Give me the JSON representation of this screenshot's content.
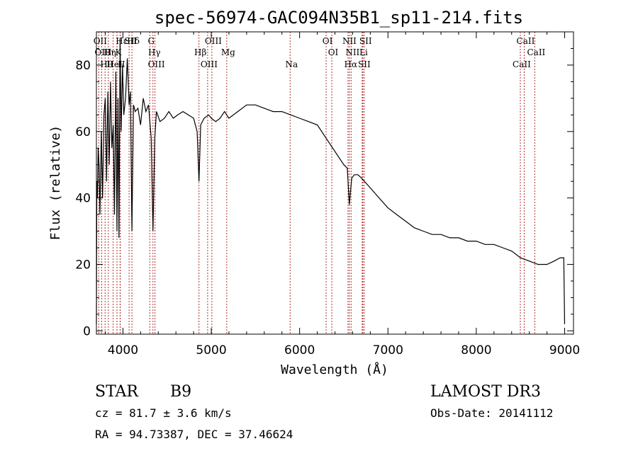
{
  "chart_data": {
    "type": "line",
    "title": "spec-56974-GAC094N35B1_sp11-214.fits",
    "xlabel": "Wavelength (Å)",
    "ylabel": "Flux (relative)",
    "xlim": [
      3700,
      9100
    ],
    "ylim": [
      -1,
      90
    ],
    "x_ticks": [
      4000,
      5000,
      6000,
      7000,
      8000,
      9000
    ],
    "y_ticks": [
      0,
      20,
      40,
      60,
      80
    ],
    "grid": false,
    "series": [
      {
        "name": "flux",
        "x": [
          3700,
          3705,
          3712,
          3720,
          3730,
          3740,
          3755,
          3770,
          3785,
          3800,
          3815,
          3830,
          3845,
          3860,
          3875,
          3890,
          3905,
          3920,
          3933,
          3945,
          3955,
          3968,
          3980,
          3995,
          4010,
          4030,
          4050,
          4070,
          4085,
          4102,
          4120,
          4140,
          4170,
          4200,
          4230,
          4260,
          4290,
          4320,
          4340,
          4360,
          4380,
          4420,
          4470,
          4520,
          4570,
          4620,
          4680,
          4740,
          4800,
          4840,
          4861,
          4880,
          4920,
          4970,
          5000,
          5050,
          5100,
          5150,
          5200,
          5300,
          5400,
          5500,
          5600,
          5700,
          5800,
          5900,
          6000,
          6100,
          6200,
          6300,
          6400,
          6500,
          6540,
          6563,
          6590,
          6620,
          6660,
          6700,
          6800,
          6900,
          7000,
          7100,
          7200,
          7300,
          7400,
          7500,
          7600,
          7700,
          7800,
          7900,
          8000,
          8100,
          8200,
          8300,
          8400,
          8500,
          8600,
          8700,
          8800,
          8880,
          8950,
          8990,
          9000
        ],
        "y": [
          2,
          45,
          40,
          55,
          50,
          35,
          60,
          40,
          65,
          70,
          45,
          72,
          50,
          75,
          55,
          62,
          35,
          78,
          30,
          70,
          28,
          88,
          60,
          80,
          65,
          70,
          82,
          68,
          72,
          30,
          68,
          66,
          67,
          62,
          70,
          66,
          68,
          58,
          30,
          58,
          66,
          63,
          64,
          66,
          64,
          65,
          66,
          65,
          64,
          60,
          45,
          62,
          64,
          65,
          64,
          63,
          64,
          66,
          64,
          66,
          68,
          68,
          67,
          66,
          66,
          65,
          64,
          63,
          62,
          58,
          54,
          50,
          49,
          38,
          46,
          47,
          47,
          46,
          43,
          40,
          37,
          35,
          33,
          31,
          30,
          29,
          29,
          28,
          28,
          27,
          27,
          26,
          26,
          25,
          24,
          22,
          21,
          20,
          20,
          21,
          22,
          22,
          2
        ]
      }
    ],
    "spectral_lines": [
      {
        "label": "Hδ",
        "wavelength": 4102
      },
      {
        "label": "K",
        "wavelength": 3933
      },
      {
        "label": "H",
        "wavelength": 3968
      },
      {
        "label": "Hε",
        "wavelength": 3970
      },
      {
        "label": "Hη",
        "wavelength": 3835
      },
      {
        "label": "Hθ",
        "wavelength": 3798
      },
      {
        "label": "OII",
        "wavelength": 3727
      },
      {
        "label": "OIII",
        "wavelength": 3760
      },
      {
        "label": "HeI",
        "wavelength": 3889
      },
      {
        "label": "SII",
        "wavelength": 4070
      },
      {
        "label": "Hγ",
        "wavelength": 4340
      },
      {
        "label": "OIII",
        "wavelength": 4363
      },
      {
        "label": "G",
        "wavelength": 4304
      },
      {
        "label": "Hβ",
        "wavelength": 4861
      },
      {
        "label": "OIII",
        "wavelength": 4959
      },
      {
        "label": "OIII",
        "wavelength": 5007
      },
      {
        "label": "Mg",
        "wavelength": 5175
      },
      {
        "label": "Na",
        "wavelength": 5893
      },
      {
        "label": "OI",
        "wavelength": 6300
      },
      {
        "label": "OI",
        "wavelength": 6364
      },
      {
        "label": "Hα",
        "wavelength": 6563
      },
      {
        "label": "NII",
        "wavelength": 6548
      },
      {
        "label": "NII",
        "wavelength": 6583
      },
      {
        "label": "SII",
        "wavelength": 6716
      },
      {
        "label": "SII",
        "wavelength": 6731
      },
      {
        "label": "Li",
        "wavelength": 6708
      },
      {
        "label": "CaII",
        "wavelength": 8498
      },
      {
        "label": "CaII",
        "wavelength": 8542
      },
      {
        "label": "CaII",
        "wavelength": 8662
      }
    ]
  },
  "info": {
    "object_class": "STAR",
    "subclass": "B9",
    "survey": "LAMOST DR3",
    "cz": "cz = 81.7 ± 3.6 km/s",
    "obs_date": "Obs-Date: 20141112",
    "coords": "RA =  94.73387, DEC =  37.46624"
  },
  "colors": {
    "spectrum": "#000000",
    "line_markers": "#b03030",
    "axes": "#000000"
  }
}
